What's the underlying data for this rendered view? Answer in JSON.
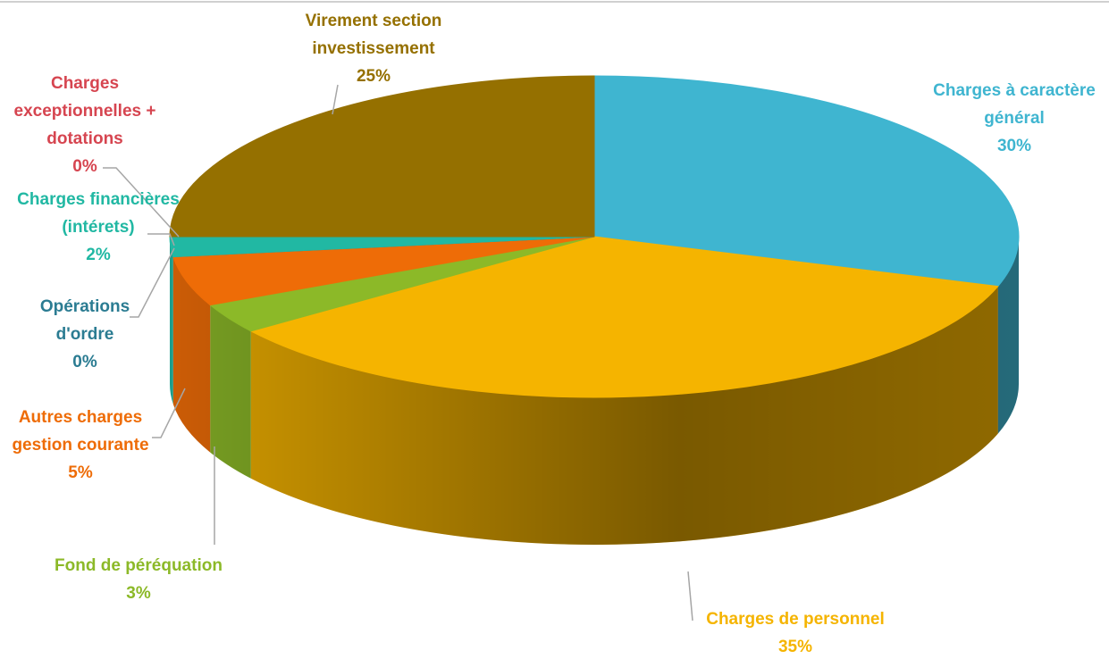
{
  "chart_data": {
    "type": "pie",
    "categories": [
      "Charges à caractère général",
      "Charges de personnel",
      "Fond de péréquation",
      "Autres charges gestion courante",
      "Opérations d'ordre",
      "Charges financières (intérets)",
      "Charges exceptionnelles + dotations",
      "Virement section investissement"
    ],
    "values": [
      30,
      35,
      3,
      5,
      0,
      2,
      0,
      25
    ],
    "value_labels": [
      "30%",
      "35%",
      "3%",
      "5%",
      "0%",
      "2%",
      "0%",
      "25%"
    ],
    "colors": [
      "#3fb5d0",
      "#f5b400",
      "#8cb928",
      "#ee6c07",
      "#2a7a8f",
      "#21b8a3",
      "#d64550",
      "#957000"
    ]
  }
}
